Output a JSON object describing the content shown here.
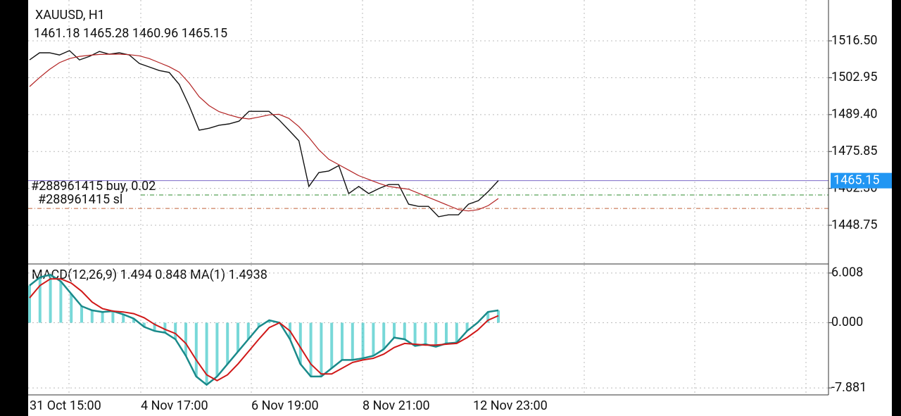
{
  "symbol": "XAUUSD, H1",
  "ohlc": "1461.18 1465.28 1460.96 1465.15",
  "price_chart": {
    "ylim": [
      1434.8,
      1531.5
    ],
    "yticks": [
      {
        "value": 1516.5,
        "label": "1516.50"
      },
      1502.95,
      {
        "value": 1489.4,
        "label": "1489.40"
      },
      1475.85,
      {
        "value": 1462.3,
        "label": "1462.30"
      },
      1448.75
    ],
    "current_price": 1465.15,
    "close": [
      1509.5,
      1512.1,
      1512.1,
      1511.3,
      1512.9,
      1509.5,
      1510.8,
      1512.6,
      1511.6,
      1512.1,
      1511.3,
      1508.2,
      1506.9,
      1505.6,
      1504.9,
      1500.5,
      1492.7,
      1483.7,
      1484.4,
      1485.5,
      1486.0,
      1487.0,
      1490.6,
      1490.6,
      1490.6,
      1487.5,
      1483.7,
      1479.8,
      1463.0,
      1468.1,
      1468.7,
      1470.7,
      1460.4,
      1463.0,
      1460.4,
      1462.2,
      1463.7,
      1463.7,
      1456.5,
      1455.7,
      1455.7,
      1451.9,
      1452.6,
      1452.6,
      1456.5,
      1457.8,
      1461.2,
      1465.15
    ],
    "moving_average": [
      1499.7,
      1503,
      1506,
      1508.5,
      1510,
      1510.8,
      1511.2,
      1511.5,
      1511.6,
      1511.6,
      1511.4,
      1511,
      1510,
      1508.5,
      1507,
      1505,
      1501,
      1496,
      1492.7,
      1490.5,
      1489.3,
      1488.3,
      1487.8,
      1488.5,
      1489.3,
      1489.5,
      1488,
      1485,
      1481,
      1476.5,
      1473,
      1471,
      1469,
      1467,
      1465.6,
      1464.2,
      1463,
      1462.5,
      1462,
      1460.5,
      1459,
      1457.5,
      1456,
      1454.5,
      1454,
      1454.5,
      1456,
      1458.6
    ],
    "orders": [
      {
        "label": "#288961415 buy, 0.02",
        "price": 1459.87,
        "color": "#2e8b2e"
      },
      {
        "label": "#288961415 sl",
        "price": 1454.95,
        "color": "#c0603a"
      }
    ]
  },
  "macd_panel": {
    "label": "MACD(12,26,9) 1.494 0.848 MA(1) 1.4938",
    "ylim": [
      -8.64,
      7.02
    ],
    "yticks": [
      6.008,
      {
        "value": 0,
        "label": "0.000"
      },
      -7.881
    ],
    "histogram": [
      4.5,
      5.5,
      5.8,
      5,
      3.5,
      2,
      1.5,
      1.3,
      1.4,
      1,
      0.5,
      -0.5,
      -1,
      -1.2,
      -2,
      -4,
      -6.5,
      -7.5,
      -6.5,
      -5,
      -3.5,
      -2,
      -0.5,
      0.3,
      0,
      -2,
      -5,
      -6.5,
      -6.5,
      -5.5,
      -4.5,
      -4.5,
      -4.3,
      -4,
      -3.2,
      -1.8,
      -2,
      -2.8,
      -2.6,
      -2.9,
      -2.5,
      -2.4,
      -1,
      0,
      1.3,
      1.494
    ],
    "signal": [
      3,
      4.5,
      5.3,
      5.3,
      4.8,
      3.8,
      2.5,
      1.7,
      1.4,
      1.3,
      1.1,
      0.6,
      -0.2,
      -0.8,
      -1.3,
      -2.5,
      -4.5,
      -6.3,
      -7,
      -6.3,
      -5,
      -3.5,
      -2,
      -0.6,
      0,
      -1,
      -3,
      -5,
      -6.2,
      -6.2,
      -5.5,
      -4.8,
      -4.5,
      -4.3,
      -3.8,
      -3,
      -2.5,
      -2.6,
      -2.7,
      -2.7,
      -2.6,
      -2.5,
      -1.8,
      -0.9,
      0.3,
      0.848
    ]
  },
  "time_axis": [
    "31 Oct 15:00",
    "4 Nov 17:00",
    "6 Nov 19:00",
    "8 Nov 21:00",
    "12 Nov 23:00"
  ]
}
